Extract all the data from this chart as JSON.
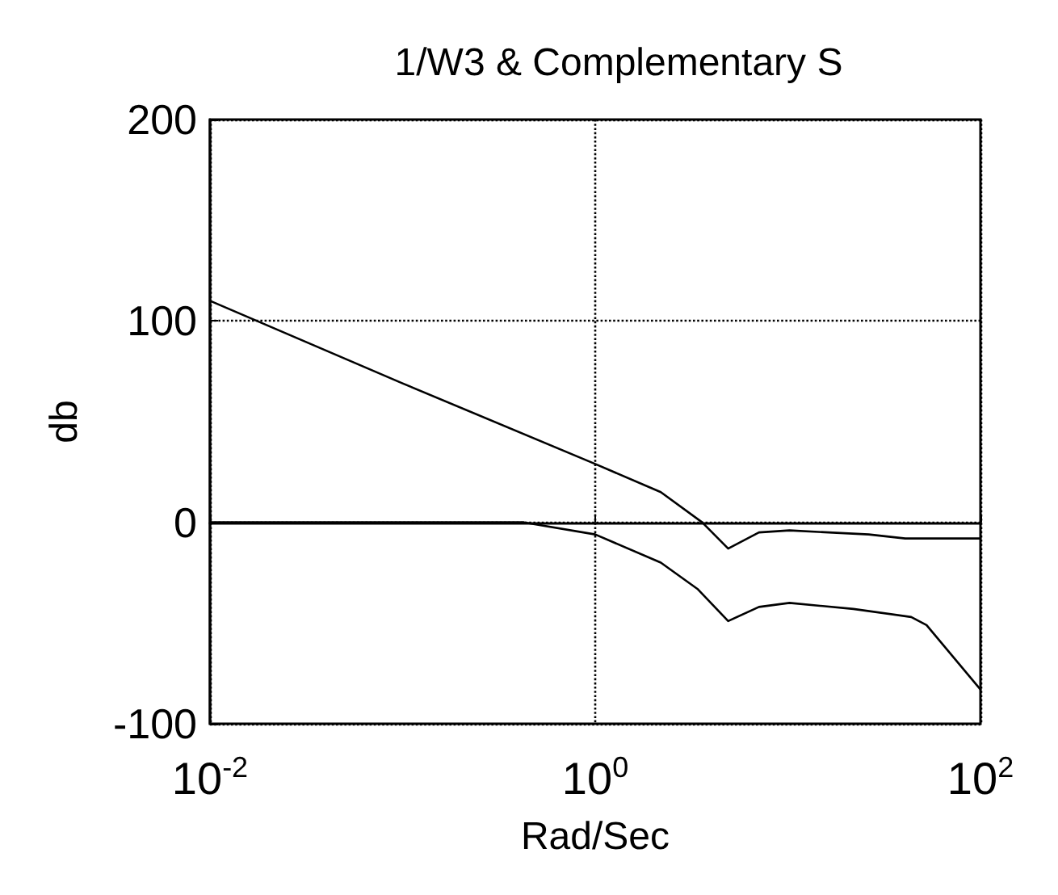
{
  "chart_data": {
    "type": "line",
    "title": "1/W3 & Complementary S",
    "xlabel": "Rad/Sec",
    "ylabel": "db",
    "log": "x",
    "xlim": [
      0.01,
      100
    ],
    "xticks": [
      {
        "value": 0.01,
        "label": "10$^{-2}$"
      },
      {
        "value": 1,
        "label": "10$^{0}$"
      },
      {
        "value": 100,
        "label": "10$^{2}$"
      }
    ],
    "ylim": [
      -100,
      200
    ],
    "yticks": [
      -100,
      0,
      100,
      200
    ],
    "grid": true,
    "marker": "none",
    "line_style": "solid",
    "series": [
      {
        "color": "#000000",
        "x": [
          0.01,
          0.1,
          1,
          2.19,
          3.59,
          4.9,
          7.08,
          10.2,
          26.3,
          40.7,
          100
        ],
        "values": [
          110,
          69,
          29,
          15,
          0,
          -13,
          -5,
          -4,
          -6,
          -8,
          -8
        ]
      },
      {
        "color": "#000000",
        "x": [
          0.01,
          0.1,
          0.427,
          1,
          2.19,
          3.39,
          4.9,
          7.08,
          10.2,
          21.9,
          43.7,
          52.5,
          100
        ],
        "values": [
          0,
          0,
          0,
          -6,
          -20,
          -33,
          -49,
          -42,
          -40,
          -43,
          -47,
          -51,
          -83
        ]
      }
    ]
  }
}
